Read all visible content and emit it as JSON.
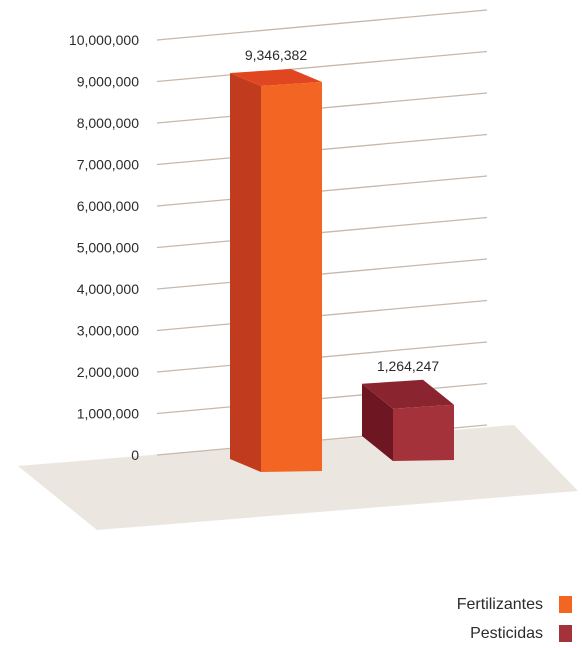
{
  "chart_data": {
    "type": "bar",
    "categories": [
      "Fertilizantes",
      "Pesticidas"
    ],
    "values": [
      9346382,
      1264247
    ],
    "value_labels": [
      "9,346,382",
      "1,264,247"
    ],
    "ylim": [
      0,
      10000000
    ],
    "y_ticks": [
      0,
      1000000,
      2000000,
      3000000,
      4000000,
      5000000,
      6000000,
      7000000,
      8000000,
      9000000,
      10000000
    ],
    "y_tick_labels": [
      "0",
      "1,000,000",
      "2,000,000",
      "3,000,000",
      "4,000,000",
      "5,000,000",
      "6,000,000",
      "7,000,000",
      "8,000,000",
      "9,000,000",
      "10,000,000"
    ],
    "grid": true,
    "legend_position": "bottom-right",
    "colors": [
      "#f26522",
      "#a4323a"
    ],
    "legend": [
      {
        "label": "Fertilizantes",
        "color": "#f26522"
      },
      {
        "label": "Pesticidas",
        "color": "#a4323a"
      }
    ]
  }
}
